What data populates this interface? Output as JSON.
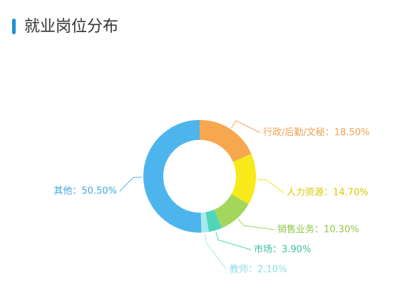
{
  "chart_data": {
    "type": "pie",
    "title": "就业岗位分布",
    "values": [
      18.5,
      14.7,
      10.3,
      3.9,
      2.1,
      50.5
    ],
    "value_labels": [
      "行政/后勤/文秘：18.50%",
      "人力资源：14.70%",
      "销售业务：10.30%",
      "市场：3.90%",
      "教师：2.10%",
      "其他：50.50%"
    ],
    "colors": [
      "#f7a84e",
      "#f7e91a",
      "#a5d65c",
      "#4fd6b8",
      "#a8e9ef",
      "#4db5ec"
    ],
    "label_colors": [
      "#f0a050",
      "#d9c800",
      "#93c44a",
      "#3bbfa8",
      "#8fdde4",
      "#3fa8df"
    ]
  }
}
